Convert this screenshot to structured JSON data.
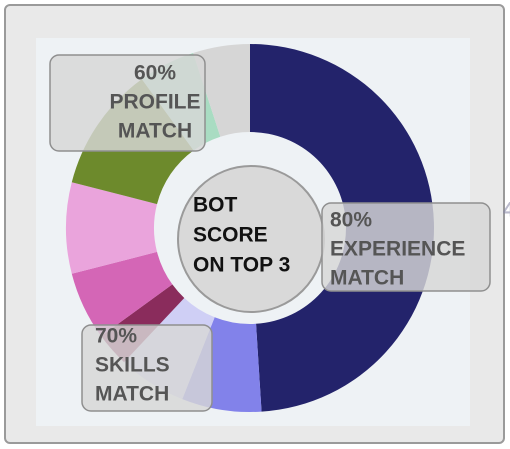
{
  "chart_data": {
    "type": "pie",
    "donut": true,
    "values": [
      49,
      7,
      6,
      3,
      6,
      8,
      11,
      5,
      5
    ],
    "colors": [
      "#23236b",
      "#8282ea",
      "#cfcff5",
      "#8a2c5c",
      "#d466b6",
      "#eaa4dc",
      "#6d8a2c",
      "#a9dcc2",
      "#d6d6d6"
    ],
    "value_labels": [
      "49%",
      null,
      null,
      null,
      null,
      null,
      null,
      null,
      null
    ],
    "center_label": [
      "BOT",
      "SCORE",
      "ON TOP 3"
    ],
    "annotations": [
      {
        "lines": [
          "60%",
          "PROFILE",
          "MATCH"
        ]
      },
      {
        "lines": [
          "80%",
          "EXPERIENCE",
          "MATCH"
        ]
      },
      {
        "lines": [
          "70%",
          "SKILLS",
          "MATCH"
        ]
      }
    ]
  }
}
